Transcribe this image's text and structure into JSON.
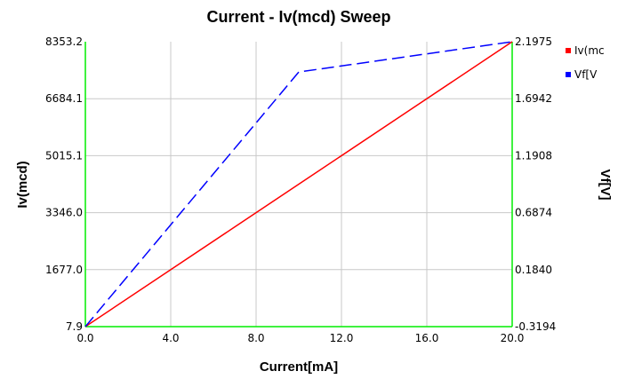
{
  "chart_data": {
    "type": "line",
    "title": "Current - Iv(mcd) Sweep",
    "xlabel": "Current[mA]",
    "ylabel_left": "Iv(mcd)",
    "ylabel_right": "Vf[V]",
    "xlim": [
      0,
      20
    ],
    "ylim_left": [
      7.9,
      8353.2
    ],
    "ylim_right": [
      -0.3194,
      2.1975
    ],
    "x_ticks": [
      "0.0",
      "4.0",
      "8.0",
      "12.0",
      "16.0",
      "20.0"
    ],
    "y_left_ticks": [
      "7.9",
      "1677.0",
      "3346.0",
      "5015.1",
      "6684.1",
      "8353.2"
    ],
    "y_right_ticks": [
      "-0.3194",
      "0.1840",
      "0.6874",
      "1.1908",
      "1.6942",
      "2.1975"
    ],
    "grid": true,
    "legend_position": "right",
    "series": [
      {
        "name": "Iv(mc",
        "axis": "left",
        "color": "#ff0000",
        "style": "solid",
        "x": [
          0,
          10,
          20
        ],
        "values": [
          7.9,
          4180,
          8353.2
        ]
      },
      {
        "name": "Vf[V",
        "axis": "right",
        "color": "#0000ff",
        "style": "dashed",
        "x": [
          0,
          10,
          20
        ],
        "values": [
          -0.3194,
          1.93,
          2.1975
        ]
      }
    ]
  },
  "colors": {
    "axis_line": "#00ee00",
    "grid": "#c8c8c8",
    "background": "#ffffff"
  }
}
